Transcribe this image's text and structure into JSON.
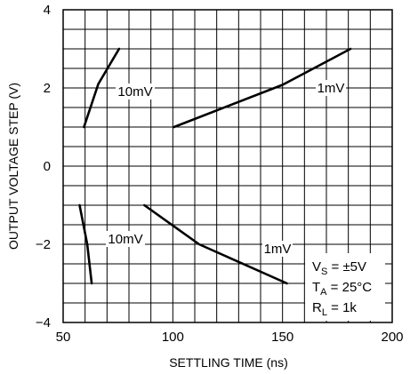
{
  "chart_data": {
    "type": "line",
    "title": "",
    "xlabel": "SETTLING TIME (ns)",
    "ylabel": "OUTPUT VOLTAGE STEP (V)",
    "xlim": [
      50,
      200
    ],
    "ylim": [
      -4,
      4
    ],
    "x_major_ticks": [
      50,
      100,
      150,
      200
    ],
    "y_major_ticks": [
      -4,
      -2,
      0,
      2,
      4
    ],
    "x_tick_labels": [
      "50",
      "100",
      "150",
      "200"
    ],
    "y_tick_labels": [
      "−4",
      "−2",
      "0",
      "2",
      "4"
    ],
    "x_grid_step": 10,
    "y_grid_step": 0.5,
    "grid": true,
    "series": [
      {
        "name": "10mV",
        "label": "10mV",
        "points": [
          [
            59.5,
            1.0
          ],
          [
            66,
            2.1
          ],
          [
            75.5,
            3.0
          ]
        ]
      },
      {
        "name": "1mV",
        "label": "1mV",
        "points": [
          [
            100.5,
            1.0
          ],
          [
            150,
            2.08
          ],
          [
            181,
            3.0
          ]
        ]
      },
      {
        "name": "10mV",
        "label": "10mV",
        "points": [
          [
            57.5,
            -1.0
          ],
          [
            61,
            -2.0
          ],
          [
            63,
            -3.0
          ]
        ]
      },
      {
        "name": "1mV",
        "label": "1mV",
        "points": [
          [
            87,
            -1.0
          ],
          [
            112,
            -2.0
          ],
          [
            152,
            -3.0
          ]
        ]
      }
    ],
    "conditions": {
      "vs": {
        "main": "V",
        "sub": "S",
        "rest": " = ±5V"
      },
      "ta": {
        "main": "T",
        "sub": "A",
        "rest": " = 25°C"
      },
      "rl": {
        "main": "R",
        "sub": "L",
        "rest": " = 1k"
      }
    }
  }
}
